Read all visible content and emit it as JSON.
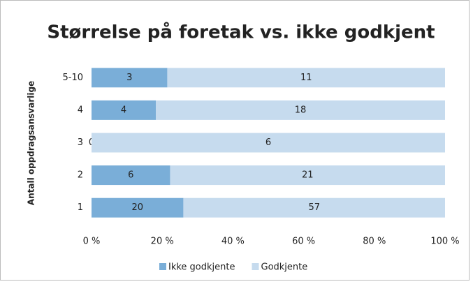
{
  "chart_data": {
    "type": "bar",
    "orientation": "horizontal",
    "stacked": "percent",
    "title": "Størrelse på foretak vs. ikke godkjent",
    "y_label": "Antall oppdragsansvarlige",
    "categories": [
      "5-10",
      "4",
      "3",
      "2",
      "1"
    ],
    "series": [
      {
        "name": "Ikke godkjente",
        "color": "#7aaed8",
        "values": [
          3,
          4,
          0,
          6,
          20
        ]
      },
      {
        "name": "Godkjente",
        "color": "#c6dbee",
        "values": [
          11,
          18,
          6,
          21,
          57
        ]
      }
    ],
    "xlim": [
      0,
      100
    ],
    "xticks": [
      {
        "value": 0,
        "label": "0 %"
      },
      {
        "value": 20,
        "label": "20 %"
      },
      {
        "value": 40,
        "label": "40 %"
      },
      {
        "value": 60,
        "label": "60 %"
      },
      {
        "value": 80,
        "label": "80 %"
      },
      {
        "value": 100,
        "label": "100 %"
      }
    ],
    "legend": "bottom"
  }
}
